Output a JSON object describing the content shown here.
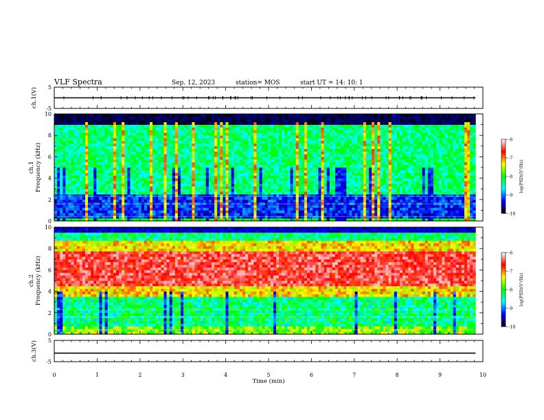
{
  "header": {
    "title": "VLF Spectra",
    "date": "Sep. 12, 2023",
    "station": "station= MOS",
    "start": "start  UT =   14: 10: 1"
  },
  "chart_data": {
    "type": "heatmap",
    "xlabel": "Time  (min)",
    "xlim": [
      0,
      10
    ],
    "xticks": [
      "0",
      "1",
      "2",
      "3",
      "4",
      "5",
      "6",
      "7",
      "8",
      "9",
      "10"
    ],
    "data_end_min": 9.83,
    "panels": [
      {
        "id": "ch1-waveform",
        "type": "line",
        "ylabel": "ch.1(V)",
        "ylim": [
          -5,
          5
        ],
        "yticks": [
          "5",
          "-5"
        ],
        "baseline": 0,
        "color": "#000000"
      },
      {
        "id": "ch1-spectrogram",
        "type": "heatmap",
        "ylabel": "ch.1",
        "ylabel2": "Frequency  (kHz)",
        "ylim": [
          0,
          10
        ],
        "yticks": [
          "0",
          "2",
          "4",
          "6",
          "8",
          "10"
        ],
        "band_kHz": [
          0.2,
          9.0
        ],
        "colorbar": {
          "label": "log(PSD)(V²/Hz)",
          "range": [
            -10,
            -6
          ],
          "ticks": [
            "-6",
            "-7",
            "-8",
            "-9",
            "-10"
          ]
        }
      },
      {
        "id": "ch2-spectrogram",
        "type": "heatmap",
        "ylabel": "ch.2",
        "ylabel2": "Frequency  (kHz)",
        "ylim": [
          0,
          10
        ],
        "yticks": [
          "0",
          "2",
          "4",
          "6",
          "8",
          "10"
        ],
        "band_kHz": [
          4.5,
          8.0
        ],
        "colorbar": {
          "label": "log(PSD)(V²/Hz)",
          "range": [
            -10,
            -6
          ],
          "ticks": [
            "-6",
            "-7",
            "-8",
            "-9",
            "-10"
          ]
        }
      },
      {
        "id": "ch3-waveform",
        "type": "line",
        "ylabel": "ch.3(V)",
        "ylim": [
          -5,
          5
        ],
        "yticks": [
          "5",
          "-5"
        ],
        "baseline": -1.0,
        "color": "#000000"
      }
    ],
    "colormap": [
      "#ffffff",
      "#ff0000",
      "#ffff00",
      "#00ff00",
      "#00ffff",
      "#0000ff",
      "#000000"
    ]
  }
}
